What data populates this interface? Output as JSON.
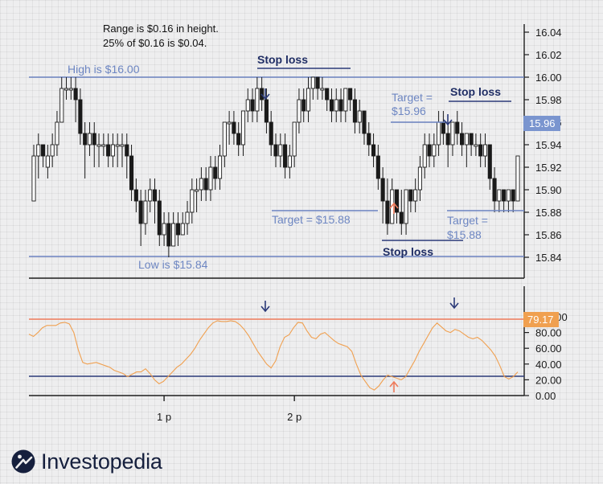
{
  "chart_data": [
    {
      "type": "candlestick",
      "title": "",
      "xlabel": "",
      "ylabel": "",
      "y_ticks": [
        "16.04",
        "16.02",
        "16.00",
        "15.98",
        "15.96",
        "15.94",
        "15.92",
        "15.90",
        "15.88",
        "15.86",
        "15.84"
      ],
      "ylim": [
        15.83,
        16.05
      ],
      "x_ticks": [
        {
          "label": "1 p",
          "index": 28
        },
        {
          "label": "2 p",
          "index": 56
        }
      ],
      "axis_side": "right",
      "grid": true,
      "current_price_label": "15.96",
      "candles": [
        [
          15.89,
          15.93,
          15.89,
          15.94
        ],
        [
          15.93,
          15.94,
          15.91,
          15.95
        ],
        [
          15.94,
          15.93,
          15.92,
          15.94
        ],
        [
          15.92,
          15.93,
          15.91,
          15.94
        ],
        [
          15.93,
          15.94,
          15.92,
          15.95
        ],
        [
          15.94,
          15.96,
          15.93,
          15.97
        ],
        [
          15.96,
          15.99,
          15.96,
          16.0
        ],
        [
          15.99,
          15.99,
          15.98,
          16.0
        ],
        [
          15.99,
          15.99,
          15.98,
          16.0
        ],
        [
          15.99,
          15.98,
          15.96,
          16.0
        ],
        [
          15.98,
          15.95,
          15.94,
          15.99
        ],
        [
          15.95,
          15.94,
          15.91,
          15.96
        ],
        [
          15.94,
          15.95,
          15.93,
          15.96
        ],
        [
          15.95,
          15.94,
          15.92,
          15.96
        ],
        [
          15.94,
          15.94,
          15.92,
          15.95
        ],
        [
          15.94,
          15.94,
          15.93,
          15.95
        ],
        [
          15.94,
          15.93,
          15.92,
          15.95
        ],
        [
          15.93,
          15.94,
          15.92,
          15.95
        ],
        [
          15.94,
          15.94,
          15.92,
          15.95
        ],
        [
          15.94,
          15.94,
          15.92,
          15.95
        ],
        [
          15.94,
          15.93,
          15.91,
          15.95
        ],
        [
          15.93,
          15.9,
          15.89,
          15.94
        ],
        [
          15.9,
          15.89,
          15.88,
          15.91
        ],
        [
          15.89,
          15.87,
          15.85,
          15.9
        ],
        [
          15.87,
          15.89,
          15.86,
          15.9
        ],
        [
          15.89,
          15.9,
          15.88,
          15.91
        ],
        [
          15.9,
          15.89,
          15.87,
          15.91
        ],
        [
          15.89,
          15.86,
          15.85,
          15.9
        ],
        [
          15.86,
          15.87,
          15.85,
          15.88
        ],
        [
          15.87,
          15.85,
          15.84,
          15.88
        ],
        [
          15.85,
          15.87,
          15.85,
          15.88
        ],
        [
          15.87,
          15.86,
          15.85,
          15.88
        ],
        [
          15.86,
          15.87,
          15.86,
          15.88
        ],
        [
          15.87,
          15.88,
          15.86,
          15.89
        ],
        [
          15.88,
          15.9,
          15.87,
          15.91
        ],
        [
          15.9,
          15.9,
          15.88,
          15.91
        ],
        [
          15.9,
          15.91,
          15.89,
          15.92
        ],
        [
          15.91,
          15.9,
          15.89,
          15.92
        ],
        [
          15.9,
          15.92,
          15.89,
          15.93
        ],
        [
          15.92,
          15.91,
          15.9,
          15.93
        ],
        [
          15.91,
          15.93,
          15.9,
          15.94
        ],
        [
          15.93,
          15.96,
          15.92,
          15.96
        ],
        [
          15.96,
          15.96,
          15.94,
          15.97
        ],
        [
          15.96,
          15.95,
          15.94,
          15.97
        ],
        [
          15.95,
          15.94,
          15.93,
          15.96
        ],
        [
          15.94,
          15.97,
          15.93,
          15.97
        ],
        [
          15.97,
          15.98,
          15.96,
          15.99
        ],
        [
          15.98,
          15.97,
          15.96,
          15.99
        ],
        [
          15.97,
          15.99,
          15.96,
          16.0
        ],
        [
          15.99,
          15.98,
          15.97,
          16.0
        ],
        [
          15.98,
          15.96,
          15.95,
          15.99
        ],
        [
          15.96,
          15.94,
          15.93,
          15.97
        ],
        [
          15.94,
          15.93,
          15.92,
          15.95
        ],
        [
          15.93,
          15.94,
          15.92,
          15.95
        ],
        [
          15.94,
          15.92,
          15.91,
          15.95
        ],
        [
          15.92,
          15.93,
          15.91,
          15.94
        ],
        [
          15.93,
          15.96,
          15.92,
          15.96
        ],
        [
          15.96,
          15.98,
          15.95,
          15.99
        ],
        [
          15.98,
          15.97,
          15.96,
          15.99
        ],
        [
          15.97,
          15.99,
          15.96,
          16.0
        ],
        [
          15.99,
          16.0,
          15.98,
          16.0
        ],
        [
          16.0,
          15.99,
          15.98,
          16.0
        ],
        [
          15.99,
          15.99,
          15.98,
          16.0
        ],
        [
          15.99,
          15.98,
          15.97,
          15.99
        ],
        [
          15.98,
          15.97,
          15.96,
          15.99
        ],
        [
          15.97,
          15.98,
          15.96,
          15.99
        ],
        [
          15.98,
          15.97,
          15.96,
          15.99
        ],
        [
          15.97,
          15.99,
          15.96,
          15.99
        ],
        [
          15.99,
          15.98,
          15.97,
          15.99
        ],
        [
          15.98,
          15.96,
          15.95,
          15.99
        ],
        [
          15.96,
          15.97,
          15.95,
          15.98
        ],
        [
          15.97,
          15.95,
          15.94,
          15.97
        ],
        [
          15.95,
          15.94,
          15.93,
          15.96
        ],
        [
          15.94,
          15.93,
          15.92,
          15.95
        ],
        [
          15.93,
          15.91,
          15.9,
          15.94
        ],
        [
          15.91,
          15.89,
          15.87,
          15.92
        ],
        [
          15.89,
          15.87,
          15.86,
          15.91
        ],
        [
          15.87,
          15.9,
          15.87,
          15.91
        ],
        [
          15.9,
          15.88,
          15.87,
          15.9
        ],
        [
          15.88,
          15.87,
          15.86,
          15.9
        ],
        [
          15.87,
          15.9,
          15.86,
          15.9
        ],
        [
          15.9,
          15.89,
          15.88,
          15.9
        ],
        [
          15.89,
          15.9,
          15.88,
          15.91
        ],
        [
          15.9,
          15.92,
          15.89,
          15.93
        ],
        [
          15.92,
          15.94,
          15.91,
          15.95
        ],
        [
          15.94,
          15.93,
          15.92,
          15.95
        ],
        [
          15.93,
          15.94,
          15.92,
          15.95
        ],
        [
          15.94,
          15.96,
          15.93,
          15.97
        ],
        [
          15.96,
          15.95,
          15.94,
          15.97
        ],
        [
          15.95,
          15.94,
          15.92,
          15.96
        ],
        [
          15.94,
          15.96,
          15.93,
          15.96
        ],
        [
          15.96,
          15.95,
          15.94,
          15.97
        ],
        [
          15.95,
          15.94,
          15.93,
          15.96
        ],
        [
          15.94,
          15.95,
          15.92,
          15.95
        ],
        [
          15.95,
          15.94,
          15.93,
          15.95
        ],
        [
          15.94,
          15.94,
          15.93,
          15.95
        ],
        [
          15.94,
          15.93,
          15.92,
          15.95
        ],
        [
          15.93,
          15.94,
          15.92,
          15.95
        ],
        [
          15.94,
          15.91,
          15.9,
          15.94
        ],
        [
          15.91,
          15.89,
          15.88,
          15.92
        ],
        [
          15.89,
          15.9,
          15.88,
          15.9
        ],
        [
          15.9,
          15.89,
          15.88,
          15.9
        ],
        [
          15.89,
          15.9,
          15.88,
          15.9
        ],
        [
          15.9,
          15.89,
          15.88,
          15.9
        ],
        [
          15.89,
          15.93,
          15.89,
          15.93
        ]
      ]
    },
    {
      "type": "line",
      "title": "",
      "y_ticks": [
        "100.00",
        "80.00",
        "60.00",
        "40.00",
        "20.00",
        "0.00"
      ],
      "ylim": [
        0,
        100
      ],
      "current_value_label": "79.17",
      "series": [
        {
          "values": [
            78,
            75,
            80,
            86,
            89,
            89,
            89,
            92,
            93,
            91,
            80,
            58,
            42,
            40,
            41,
            42,
            40,
            38,
            36,
            32,
            30,
            28,
            24,
            27,
            30,
            30,
            34,
            28,
            20,
            15,
            18,
            24,
            30,
            36,
            40,
            46,
            52,
            60,
            70,
            78,
            86,
            92,
            95,
            94,
            94,
            95,
            94,
            90,
            84,
            76,
            66,
            56,
            48,
            40,
            35,
            44,
            62,
            74,
            77,
            86,
            93,
            92,
            82,
            74,
            72,
            78,
            80,
            75,
            70,
            66,
            64,
            62,
            56,
            40,
            26,
            18,
            10,
            7,
            12,
            20,
            26,
            24,
            22,
            20,
            24,
            34,
            44,
            56,
            66,
            76,
            86,
            92,
            87,
            82,
            80,
            84,
            82,
            78,
            74,
            72,
            74,
            70,
            64,
            58,
            50,
            38,
            24,
            21,
            24,
            30
          ]
        }
      ]
    }
  ],
  "reference_lines": {
    "high": {
      "value": 16.0,
      "label": "High is $16.00"
    },
    "low": {
      "value": 15.84,
      "label": "Low is $15.84"
    },
    "oscillator_upper": {
      "value": 79.17
    },
    "oscillator_lower": {
      "value": 20.0
    }
  },
  "annotations": {
    "note_line1": "Range is $0.16 in height.",
    "note_line2": "25% of $0.16 is $0.04.",
    "stop_loss_label": "Stop loss",
    "target_1": "Target = $15.88",
    "target_2_line1": "Target =",
    "target_2_line2": "$15.96",
    "target_3_line1": "Target =",
    "target_3_line2": "$15.88"
  },
  "colors": {
    "price_lines": "#6b82c0",
    "navy": "#2b3a78",
    "orange": "#f0a050",
    "red_line": "#ee7a5a",
    "background": "#eeeeef"
  },
  "brand": {
    "name": "Investopedia"
  }
}
